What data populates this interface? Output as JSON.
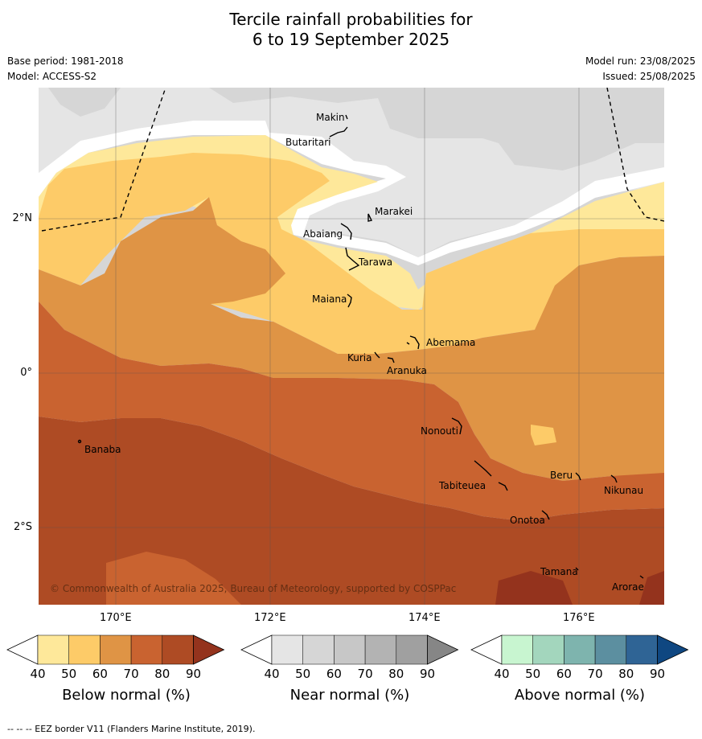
{
  "header": {
    "title_line1": "Tercile rainfall probabilities for",
    "title_line2": "6 to 19 September 2025",
    "base_period": "Base period: 1981-2018",
    "model": "Model: ACCESS-S2",
    "model_run": "Model run: 23/08/2025",
    "issued": "Issued: 25/08/2025"
  },
  "map": {
    "lon_labels": [
      "170°E",
      "172°E",
      "174°E",
      "176°E"
    ],
    "lat_labels": [
      "2°N",
      "0°",
      "2°S"
    ],
    "copyright": "© Commonwealth of Australia 2025, Bureau of Meteorology, supported by COSPPac",
    "islands": [
      "Makin",
      "Butaritari",
      "Marakei",
      "Abaiang",
      "Tarawa",
      "Maiana",
      "Abemama",
      "Kuria",
      "Aranuka",
      "Nonouti",
      "Banaba",
      "Beru",
      "Nikunau",
      "Tabiteuea",
      "Onotoa",
      "Tamana",
      "Arorae"
    ],
    "colors": {
      "below_40_50": "#fee89a",
      "below_50_60": "#fdcb68",
      "below_60_70": "#df9445",
      "below_70_80": "#c96330",
      "below_80_90": "#ae4b24",
      "below_90": "#94331d",
      "near_40_50": "#e5e5e5",
      "near_50_60": "#d6d6d6"
    }
  },
  "colorbars": [
    {
      "title": "Below normal (%)",
      "ticks": [
        "40",
        "50",
        "60",
        "70",
        "80",
        "90"
      ],
      "colors": [
        "#ffffff",
        "#fee89a",
        "#fdcb68",
        "#df9445",
        "#c96330",
        "#ae4b24",
        "#94331d"
      ]
    },
    {
      "title": "Near normal (%)",
      "ticks": [
        "40",
        "50",
        "60",
        "70",
        "80",
        "90"
      ],
      "colors": [
        "#ffffff",
        "#e5e5e5",
        "#d6d6d6",
        "#c7c7c7",
        "#b3b3b3",
        "#a0a0a0",
        "#868686"
      ]
    },
    {
      "title": "Above normal (%)",
      "ticks": [
        "40",
        "50",
        "60",
        "70",
        "80",
        "90"
      ],
      "colors": [
        "#ffffff",
        "#c8f5d0",
        "#a3d6bd",
        "#7eb4ae",
        "#5c8fa0",
        "#2f6495",
        "#0f4781"
      ]
    }
  ],
  "footer": {
    "legend_note": "--  --  -- EEZ border V11 (Flanders Marine Institute, 2019)."
  }
}
